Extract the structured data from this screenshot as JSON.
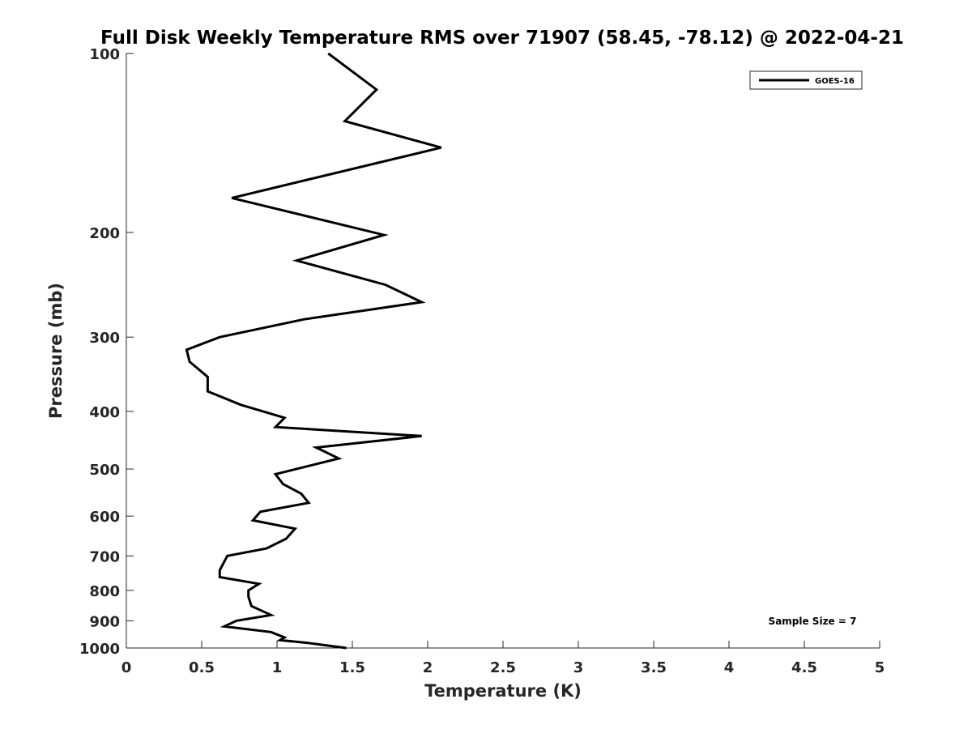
{
  "chart_data": {
    "type": "line",
    "title": "Full Disk Weekly Temperature RMS over 71907 (58.45, -78.12) @ 2022-04-21",
    "xlabel": "Temperature (K)",
    "ylabel": "Pressure (mb)",
    "xlim": [
      0,
      5
    ],
    "ylim": [
      100,
      1000
    ],
    "y_scale": "log",
    "y_reversed": true,
    "x_ticks": [
      0,
      0.5,
      1,
      1.5,
      2,
      2.5,
      3,
      3.5,
      4,
      4.5,
      5
    ],
    "x_tick_labels": [
      "0",
      "0.5",
      "1",
      "1.5",
      "2",
      "2.5",
      "3",
      "3.5",
      "4",
      "4.5",
      "5"
    ],
    "y_ticks": [
      100,
      200,
      300,
      400,
      500,
      600,
      700,
      800,
      900,
      1000
    ],
    "y_tick_labels": [
      "100",
      "200",
      "300",
      "400",
      "500",
      "600",
      "700",
      "800",
      "900",
      "1000"
    ],
    "grid": false,
    "legend_position": "top-right",
    "series": [
      {
        "name": "GOES-16",
        "color": "#000000",
        "x": [
          1.34,
          1.66,
          1.45,
          2.09,
          0.7,
          1.71,
          1.13,
          1.72,
          1.96,
          1.18,
          0.62,
          0.4,
          0.42,
          0.54,
          0.54,
          0.76,
          1.05,
          0.99,
          1.96,
          1.26,
          1.41,
          0.99,
          1.04,
          1.16,
          1.21,
          0.89,
          0.84,
          1.12,
          1.06,
          0.93,
          0.67,
          0.62,
          0.62,
          0.88,
          0.81,
          0.81,
          0.83,
          0.96,
          0.73,
          0.65,
          0.96,
          1.05,
          1.02,
          1.2,
          1.46
        ],
        "y": [
          100,
          115,
          130,
          144,
          175,
          202,
          223,
          245,
          262,
          280,
          300,
          315,
          330,
          350,
          370,
          390,
          410,
          425,
          440,
          460,
          480,
          510,
          530,
          550,
          570,
          590,
          610,
          630,
          655,
          680,
          700,
          740,
          760,
          780,
          800,
          820,
          850,
          880,
          900,
          920,
          940,
          960,
          970,
          980,
          1000
        ]
      }
    ],
    "annotations": [
      "Sample Size = 7"
    ]
  }
}
